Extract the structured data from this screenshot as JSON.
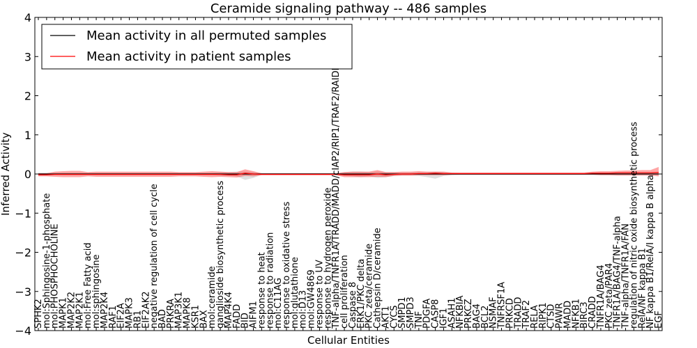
{
  "chart_data": {
    "type": "line",
    "title": "Ceramide signaling pathway -- 486 samples",
    "xlabel": "Cellular Entities",
    "ylabel": "Inferred Activity",
    "ylim": [
      -4,
      4
    ],
    "yticks": [
      "−4",
      "−3",
      "−2",
      "−1",
      "0",
      "1",
      "2",
      "3",
      "4"
    ],
    "ytick_values": [
      -4,
      -3,
      -2,
      -1,
      0,
      1,
      2,
      3,
      4
    ],
    "grid": false,
    "legend_position": "top-left",
    "categories": [
      "SPHK2",
      "mol:Sphingosine-1-phosphate",
      "mol:PHOSPHOCHOLINE",
      "MAPK1",
      "MAP2K2",
      "MAP2K1",
      "mol:Free Fatty acid",
      "mol:sphingosine",
      "MAP2K4",
      "RAF1",
      "EIF2A",
      "MAPK3",
      "RB1",
      "EIF2AK2",
      "negative regulation of cell cycle",
      "BAD",
      "PRKRA",
      "MAP3K1",
      "MAPK8",
      "KSR1",
      "BAX",
      "mol:ceramide",
      "ganglioside biosynthetic process",
      "MAP4K4",
      "FADD",
      "BID",
      "AIFM1",
      "response to heat",
      "response to radiation",
      "mol:C11AG",
      "response to oxidative stress",
      "mol:glutathione",
      "mol:D13",
      "mol:GW4869",
      "response to UV",
      "response to hydrogen peroxide",
      "TNF-alpha/TNFR1A/TRADD/MADD/cIAP2/RIP1/TRAF2/RAIDD",
      "cell proliferation",
      "Caspase 8",
      "ERK1/PKC delta",
      "PKC zeta/ceramide",
      "Cathepsin D/ceramide",
      "AKT1",
      "CYCS",
      "SMPD1",
      "SMPD3",
      "TNF",
      "PDGFA",
      "CASP8",
      "IGF1",
      "ASAH1",
      "NFKBIA",
      "PRKCZ",
      "BAG4",
      "BCL2",
      "NSMAF",
      "TNFRSF1A",
      "PRKCD",
      "TRADD",
      "TRAF2",
      "RELA",
      "RIPK1",
      "CTSD",
      "PAWR",
      "MADD",
      "NFKB1",
      "BIRC3",
      "CRADD",
      "TNFR1A/BAG4",
      "PKC zeta/PAR4",
      "TNFR1A/BAG4/TNF-alpha",
      "TNF-alpha/TNFR1A/FAN",
      "regulation of nitric oxide biosynthetic process",
      "RelA/NF kappa B1",
      "NF kappa B1/RelA/I kappa B alpha",
      "EGF"
    ],
    "series": [
      {
        "name": "Mean activity in all permuted samples",
        "color": "#000000",
        "values": [
          0.0,
          0.0,
          0.0,
          0.0,
          0.0,
          0.0,
          0.0,
          0.0,
          0.0,
          0.0,
          0.0,
          0.0,
          0.0,
          0.0,
          0.0,
          0.0,
          0.0,
          0.0,
          0.0,
          0.0,
          0.0,
          0.0,
          0.0,
          0.0,
          0.0,
          0.0,
          0.0,
          0.0,
          0.0,
          0.0,
          0.0,
          0.0,
          0.0,
          0.0,
          0.0,
          0.0,
          0.0,
          0.0,
          0.0,
          0.0,
          0.0,
          0.0,
          0.0,
          0.0,
          0.0,
          0.0,
          0.0,
          0.0,
          0.0,
          0.0,
          0.0,
          0.0,
          0.0,
          0.0,
          0.0,
          0.0,
          0.0,
          0.0,
          0.0,
          0.0,
          0.0,
          0.0,
          0.0,
          0.0,
          0.0,
          0.0,
          0.0,
          0.0,
          0.0,
          0.0,
          0.0,
          0.0,
          0.0,
          0.0,
          0.0,
          0.0
        ],
        "lower": [
          -0.03,
          -0.03,
          -0.03,
          -0.03,
          -0.03,
          -0.03,
          -0.03,
          -0.03,
          -0.03,
          -0.03,
          -0.03,
          -0.03,
          -0.03,
          -0.03,
          -0.03,
          -0.03,
          -0.03,
          -0.03,
          -0.03,
          -0.03,
          -0.03,
          -0.03,
          -0.05,
          -0.05,
          -0.06,
          -0.15,
          -0.1,
          -0.02,
          -0.02,
          -0.02,
          -0.02,
          -0.02,
          -0.02,
          -0.02,
          -0.02,
          -0.02,
          -0.02,
          -0.05,
          -0.06,
          -0.08,
          -0.06,
          -0.1,
          -0.08,
          -0.05,
          -0.04,
          -0.04,
          -0.05,
          -0.08,
          -0.12,
          -0.05,
          -0.03,
          -0.02,
          -0.02,
          -0.02,
          -0.02,
          -0.02,
          -0.02,
          -0.02,
          -0.02,
          -0.02,
          -0.02,
          -0.02,
          -0.02,
          -0.02,
          -0.02,
          -0.02,
          -0.02,
          -0.02,
          -0.02,
          -0.02,
          -0.02,
          -0.02,
          -0.02,
          -0.02,
          -0.02,
          -0.02
        ],
        "upper": [
          0.03,
          0.03,
          0.03,
          0.03,
          0.03,
          0.03,
          0.03,
          0.03,
          0.03,
          0.03,
          0.03,
          0.03,
          0.03,
          0.03,
          0.03,
          0.03,
          0.03,
          0.03,
          0.03,
          0.03,
          0.03,
          0.03,
          0.05,
          0.05,
          0.06,
          0.06,
          0.05,
          0.02,
          0.02,
          0.02,
          0.02,
          0.02,
          0.02,
          0.02,
          0.02,
          0.02,
          0.02,
          0.05,
          0.06,
          0.06,
          0.05,
          0.06,
          0.05,
          0.05,
          0.04,
          0.04,
          0.05,
          0.05,
          0.06,
          0.05,
          0.03,
          0.02,
          0.02,
          0.02,
          0.02,
          0.02,
          0.02,
          0.02,
          0.02,
          0.02,
          0.02,
          0.02,
          0.02,
          0.02,
          0.02,
          0.02,
          0.02,
          0.02,
          0.02,
          0.02,
          0.02,
          0.02,
          0.02,
          0.02,
          0.02,
          0.02
        ]
      },
      {
        "name": "Mean activity in patient samples",
        "color": "#ff0000",
        "values": [
          -0.02,
          -0.02,
          -0.01,
          -0.01,
          -0.01,
          -0.01,
          -0.01,
          -0.01,
          -0.01,
          -0.01,
          -0.01,
          -0.01,
          -0.01,
          -0.01,
          -0.01,
          -0.01,
          -0.01,
          -0.01,
          -0.01,
          -0.01,
          -0.01,
          -0.01,
          -0.01,
          -0.02,
          -0.02,
          0.02,
          0.0,
          -0.01,
          -0.01,
          -0.01,
          -0.01,
          -0.01,
          -0.01,
          -0.01,
          -0.01,
          -0.01,
          -0.01,
          -0.02,
          -0.02,
          -0.02,
          -0.02,
          0.0,
          -0.02,
          -0.01,
          0.0,
          0.0,
          0.01,
          0.01,
          0.02,
          0.01,
          0.01,
          0.01,
          0.01,
          0.01,
          0.01,
          0.01,
          0.01,
          0.01,
          0.01,
          0.01,
          0.01,
          0.01,
          0.01,
          0.01,
          0.01,
          0.01,
          0.01,
          0.02,
          0.02,
          0.02,
          0.03,
          0.03,
          0.03,
          0.03,
          0.03,
          0.04
        ],
        "lower": [
          -0.06,
          -0.06,
          -0.07,
          -0.08,
          -0.08,
          -0.08,
          -0.06,
          -0.07,
          -0.07,
          -0.07,
          -0.07,
          -0.07,
          -0.07,
          -0.07,
          -0.07,
          -0.07,
          -0.07,
          -0.06,
          -0.06,
          -0.06,
          -0.07,
          -0.08,
          -0.07,
          -0.08,
          -0.09,
          -0.05,
          -0.06,
          -0.03,
          -0.03,
          -0.03,
          -0.03,
          -0.03,
          -0.03,
          -0.03,
          -0.03,
          -0.03,
          -0.03,
          -0.08,
          -0.08,
          -0.08,
          -0.08,
          -0.07,
          -0.08,
          -0.05,
          -0.04,
          -0.04,
          -0.03,
          -0.03,
          -0.03,
          -0.03,
          -0.02,
          -0.02,
          -0.02,
          -0.02,
          -0.02,
          -0.02,
          -0.02,
          -0.02,
          -0.02,
          -0.02,
          -0.02,
          -0.02,
          -0.02,
          -0.02,
          -0.02,
          -0.02,
          -0.02,
          -0.02,
          -0.03,
          -0.03,
          -0.04,
          -0.04,
          -0.04,
          -0.04,
          -0.04,
          -0.06
        ],
        "upper": [
          0.02,
          0.02,
          0.06,
          0.07,
          0.08,
          0.08,
          0.05,
          0.06,
          0.06,
          0.06,
          0.06,
          0.06,
          0.06,
          0.06,
          0.06,
          0.06,
          0.06,
          0.05,
          0.05,
          0.05,
          0.06,
          0.07,
          0.06,
          0.05,
          0.05,
          0.12,
          0.07,
          0.02,
          0.02,
          0.02,
          0.02,
          0.02,
          0.02,
          0.02,
          0.02,
          0.02,
          0.02,
          0.05,
          0.06,
          0.06,
          0.06,
          0.1,
          0.05,
          0.05,
          0.06,
          0.06,
          0.07,
          0.06,
          0.06,
          0.06,
          0.04,
          0.04,
          0.04,
          0.04,
          0.04,
          0.04,
          0.04,
          0.04,
          0.04,
          0.04,
          0.04,
          0.04,
          0.04,
          0.04,
          0.04,
          0.04,
          0.04,
          0.06,
          0.07,
          0.07,
          0.08,
          0.09,
          0.09,
          0.1,
          0.1,
          0.18
        ]
      }
    ]
  }
}
